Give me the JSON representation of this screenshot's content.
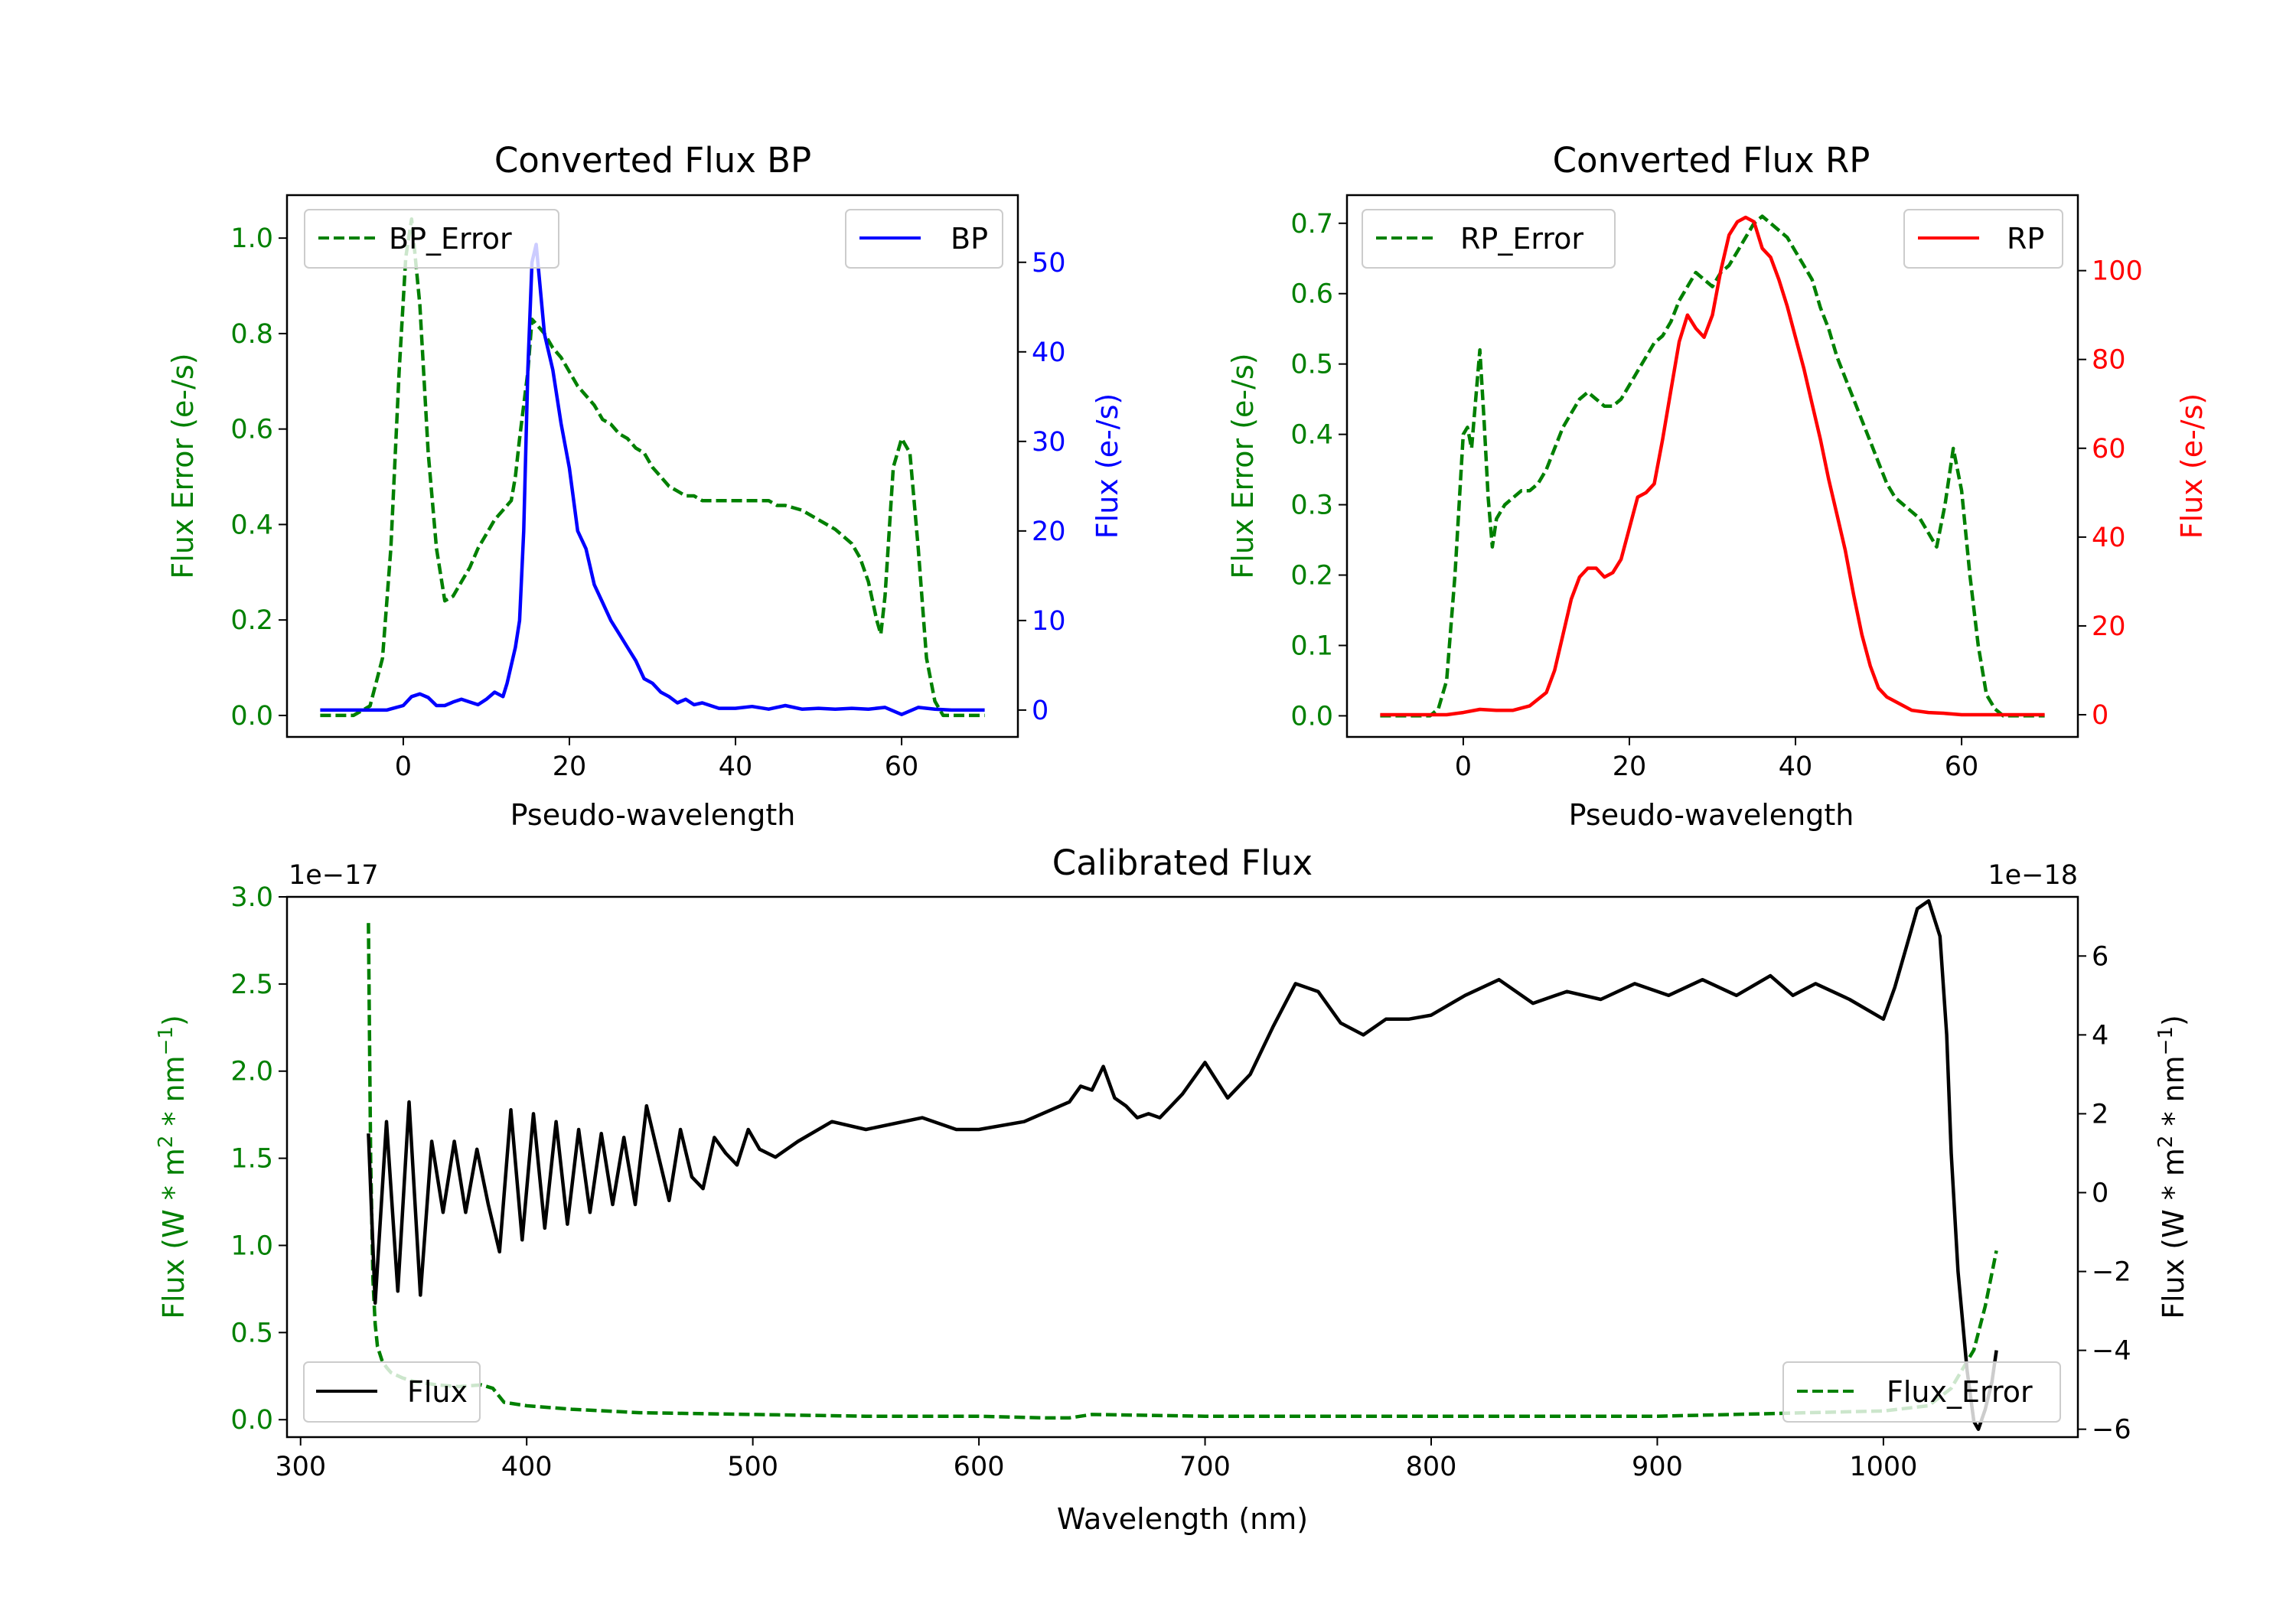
{
  "chart_data": [
    {
      "id": "bp",
      "type": "line",
      "title": "Converted Flux BP",
      "xlabel": "Pseudo-wavelength",
      "ylabel_left": "Flux Error (e-/s)",
      "ylabel_right": "Flux (e-/s)",
      "xlim": [
        -14,
        74
      ],
      "ylim_left": [
        -0.045,
        1.09
      ],
      "ylim_right": [
        -3.0,
        57.5
      ],
      "xticks": [
        0,
        20,
        40,
        60
      ],
      "yticks_left": [
        0.0,
        0.2,
        0.4,
        0.6,
        0.8,
        1.0
      ],
      "yticks_right": [
        0,
        10,
        20,
        30,
        40,
        50
      ],
      "colors": {
        "left": "#008000",
        "right": "#0000ff"
      },
      "series": [
        {
          "name": "BP_Error",
          "axis": "left",
          "style": "dashed",
          "color": "#008000",
          "x": [
            -10,
            -6,
            -4,
            -2.5,
            -1.5,
            -0.5,
            0.3,
            1,
            2,
            3,
            4,
            5,
            6,
            7,
            8,
            9,
            10,
            11,
            12,
            13,
            13.5,
            14,
            15,
            15.5,
            16,
            17,
            18,
            19,
            20,
            21,
            22,
            23,
            24,
            25,
            26,
            27,
            28,
            29,
            30,
            31,
            32,
            33,
            34,
            35,
            36,
            37,
            38,
            40,
            42,
            44,
            45,
            46,
            48,
            50,
            52,
            54,
            55,
            56,
            57,
            57.5,
            58,
            59,
            60,
            61,
            62,
            63,
            64,
            65,
            66,
            68,
            70
          ],
          "values": [
            0.0,
            0.0,
            0.02,
            0.12,
            0.35,
            0.72,
            0.96,
            1.04,
            0.86,
            0.55,
            0.35,
            0.24,
            0.25,
            0.28,
            0.31,
            0.35,
            0.38,
            0.41,
            0.43,
            0.45,
            0.5,
            0.58,
            0.72,
            0.83,
            0.82,
            0.8,
            0.77,
            0.75,
            0.72,
            0.69,
            0.67,
            0.65,
            0.62,
            0.61,
            0.59,
            0.58,
            0.56,
            0.55,
            0.52,
            0.5,
            0.48,
            0.47,
            0.46,
            0.46,
            0.45,
            0.45,
            0.45,
            0.45,
            0.45,
            0.45,
            0.44,
            0.44,
            0.43,
            0.41,
            0.39,
            0.36,
            0.33,
            0.28,
            0.2,
            0.17,
            0.25,
            0.52,
            0.58,
            0.55,
            0.35,
            0.12,
            0.03,
            0.0,
            0.0,
            0.0,
            0.0
          ]
        },
        {
          "name": "BP",
          "axis": "right",
          "style": "solid",
          "color": "#0000ff",
          "x": [
            -10,
            -4,
            -2,
            0,
            1,
            2,
            3,
            4,
            5,
            6,
            7,
            8,
            9,
            10,
            11,
            12,
            12.5,
            13,
            13.5,
            14,
            14.5,
            15,
            15.5,
            16,
            17,
            18,
            19,
            20,
            21,
            22,
            23,
            24,
            25,
            26,
            27,
            28,
            29,
            30,
            31,
            32,
            33,
            34,
            35,
            36,
            38,
            40,
            42,
            44,
            46,
            48,
            50,
            52,
            54,
            56,
            58,
            60,
            62,
            64,
            66,
            68,
            70
          ],
          "values": [
            0,
            0,
            0,
            0.5,
            1.5,
            1.8,
            1.4,
            0.5,
            0.5,
            0.9,
            1.2,
            0.9,
            0.6,
            1.2,
            2.0,
            1.5,
            3,
            5,
            7,
            10,
            20,
            38,
            50,
            52,
            42,
            38,
            32,
            27,
            20,
            18,
            14,
            12,
            10,
            8.5,
            7,
            5.5,
            3.5,
            3,
            2,
            1.5,
            0.8,
            1.2,
            0.6,
            0.8,
            0.2,
            0.2,
            0.4,
            0.1,
            0.5,
            0.1,
            0.2,
            0.1,
            0.2,
            0.1,
            0.3,
            -0.5,
            0.3,
            0.1,
            0,
            0,
            0
          ]
        }
      ],
      "legend": [
        {
          "label": "BP_Error",
          "position": "upper-left"
        },
        {
          "label": "BP",
          "position": "upper-right"
        }
      ]
    },
    {
      "id": "rp",
      "type": "line",
      "title": "Converted Flux RP",
      "xlabel": "Pseudo-wavelength",
      "ylabel_left": "Flux Error (e-/s)",
      "ylabel_right": "Flux (e-/s)",
      "xlim": [
        -14,
        74
      ],
      "ylim_left": [
        -0.03,
        0.74
      ],
      "ylim_right": [
        -5.0,
        117.0
      ],
      "xticks": [
        0,
        20,
        40,
        60
      ],
      "yticks_left": [
        0.0,
        0.1,
        0.2,
        0.3,
        0.4,
        0.5,
        0.6,
        0.7
      ],
      "yticks_right": [
        0,
        20,
        40,
        60,
        80,
        100
      ],
      "colors": {
        "left": "#008000",
        "right": "#ff0000"
      },
      "series": [
        {
          "name": "RP_Error",
          "axis": "left",
          "style": "dashed",
          "color": "#008000",
          "x": [
            -10,
            -4,
            -3,
            -2,
            -1,
            0,
            0.5,
            1,
            1.5,
            2,
            2.5,
            3,
            3.5,
            4,
            5,
            6,
            7,
            8,
            9,
            10,
            11,
            12,
            13,
            14,
            15,
            16,
            17,
            18,
            19,
            20,
            21,
            22,
            23,
            24,
            25,
            26,
            27,
            28,
            29,
            30,
            31,
            32,
            33,
            34,
            35,
            36,
            37,
            38,
            39,
            40,
            41,
            42,
            43,
            44,
            45,
            46,
            47,
            48,
            49,
            50,
            51,
            52,
            53,
            54,
            55,
            56,
            57,
            58,
            59,
            60,
            61,
            62,
            63,
            64,
            65,
            66,
            70
          ],
          "values": [
            0.0,
            0.0,
            0.01,
            0.05,
            0.2,
            0.4,
            0.41,
            0.38,
            0.45,
            0.52,
            0.42,
            0.31,
            0.24,
            0.28,
            0.3,
            0.31,
            0.32,
            0.32,
            0.33,
            0.35,
            0.38,
            0.41,
            0.43,
            0.45,
            0.46,
            0.45,
            0.44,
            0.44,
            0.45,
            0.47,
            0.49,
            0.51,
            0.53,
            0.54,
            0.56,
            0.59,
            0.61,
            0.63,
            0.62,
            0.61,
            0.63,
            0.64,
            0.66,
            0.68,
            0.7,
            0.71,
            0.7,
            0.69,
            0.68,
            0.66,
            0.64,
            0.62,
            0.58,
            0.55,
            0.51,
            0.48,
            0.45,
            0.42,
            0.39,
            0.36,
            0.33,
            0.31,
            0.3,
            0.29,
            0.28,
            0.26,
            0.24,
            0.3,
            0.38,
            0.32,
            0.2,
            0.1,
            0.03,
            0.01,
            0.0,
            0.0,
            0.0
          ]
        },
        {
          "name": "RP",
          "axis": "right",
          "style": "solid",
          "color": "#ff0000",
          "x": [
            -10,
            -2,
            0,
            2,
            4,
            6,
            8,
            10,
            11,
            12,
            13,
            14,
            15,
            16,
            17,
            18,
            19,
            20,
            21,
            22,
            23,
            24,
            25,
            26,
            27,
            28,
            29,
            30,
            31,
            32,
            33,
            34,
            35,
            36,
            37,
            38,
            39,
            40,
            41,
            42,
            43,
            44,
            45,
            46,
            47,
            48,
            49,
            50,
            51,
            52,
            53,
            54,
            56,
            58,
            60,
            62,
            64,
            66,
            70
          ],
          "values": [
            0,
            0,
            0.5,
            1.2,
            1.0,
            1.0,
            2.0,
            5,
            10,
            18,
            26,
            31,
            33,
            33,
            31,
            32,
            35,
            42,
            49,
            50,
            52,
            62,
            73,
            84,
            90,
            87,
            85,
            90,
            100,
            108,
            111,
            112,
            111,
            105,
            103,
            98,
            92,
            85,
            78,
            70,
            62,
            53,
            45,
            37,
            27,
            18,
            11,
            6,
            4,
            3,
            2,
            1,
            0.5,
            0.3,
            0,
            0,
            0,
            0,
            0
          ]
        }
      ],
      "legend": [
        {
          "label": "RP_Error",
          "position": "upper-left"
        },
        {
          "label": "RP",
          "position": "upper-right"
        }
      ]
    },
    {
      "id": "cal",
      "type": "line",
      "title": "Calibrated Flux",
      "xlabel": "Wavelength (nm)",
      "ylabel_left": "Flux (W * m^2 * nm^-1)",
      "ylabel_right": "Flux (W * m^2 * nm^-1)",
      "offset_left": "1e−17",
      "offset_right": "1e−18",
      "xlim": [
        294,
        1086
      ],
      "ylim_left": [
        -0.1,
        3.0
      ],
      "ylim_right": [
        -6.2,
        7.5
      ],
      "xticks": [
        300,
        400,
        500,
        600,
        700,
        800,
        900,
        1000
      ],
      "yticks_left": [
        0.0,
        0.5,
        1.0,
        1.5,
        2.0,
        2.5,
        3.0
      ],
      "yticks_right": [
        -6,
        -4,
        -2,
        0,
        2,
        4,
        6
      ],
      "colors": {
        "left": "#008000",
        "right": "#000000"
      },
      "series": [
        {
          "name": "Flux_Error",
          "axis": "left",
          "style": "dashed",
          "color": "#008000",
          "x": [
            330,
            331,
            332,
            333,
            334,
            336,
            338,
            340,
            345,
            350,
            360,
            370,
            380,
            385,
            390,
            400,
            420,
            450,
            500,
            550,
            600,
            630,
            640,
            650,
            700,
            800,
            900,
            1000,
            1020,
            1030,
            1040,
            1045,
            1050
          ],
          "values": [
            2.85,
            1.5,
            0.8,
            0.55,
            0.42,
            0.34,
            0.3,
            0.27,
            0.24,
            0.22,
            0.2,
            0.19,
            0.2,
            0.18,
            0.1,
            0.08,
            0.06,
            0.04,
            0.03,
            0.02,
            0.02,
            0.01,
            0.01,
            0.03,
            0.02,
            0.02,
            0.02,
            0.05,
            0.08,
            0.18,
            0.4,
            0.65,
            0.97
          ]
        },
        {
          "name": "Flux",
          "axis": "right",
          "style": "solid",
          "color": "#000000",
          "x": [
            330,
            333,
            338,
            343,
            348,
            353,
            358,
            363,
            368,
            373,
            378,
            383,
            388,
            393,
            398,
            403,
            408,
            413,
            418,
            423,
            428,
            433,
            438,
            443,
            448,
            453,
            458,
            463,
            468,
            473,
            478,
            483,
            488,
            493,
            498,
            503,
            510,
            520,
            535,
            550,
            575,
            590,
            600,
            620,
            640,
            645,
            650,
            655,
            660,
            665,
            670,
            675,
            680,
            690,
            700,
            710,
            720,
            730,
            740,
            750,
            760,
            770,
            780,
            790,
            800,
            815,
            830,
            845,
            860,
            875,
            890,
            905,
            920,
            935,
            950,
            960,
            970,
            985,
            1000,
            1005,
            1010,
            1015,
            1020,
            1025,
            1028,
            1030,
            1033,
            1037,
            1040,
            1042,
            1045,
            1048,
            1050
          ],
          "values": [
            1.5,
            -2.8,
            1.8,
            -2.5,
            2.3,
            -2.6,
            1.3,
            -0.5,
            1.3,
            -0.5,
            1.1,
            -0.3,
            -1.5,
            2.1,
            -1.2,
            2.0,
            -0.9,
            1.8,
            -0.8,
            1.6,
            -0.5,
            1.5,
            -0.3,
            1.4,
            -0.3,
            2.2,
            1.0,
            -0.2,
            1.6,
            0.4,
            0.1,
            1.4,
            1.0,
            0.7,
            1.6,
            1.1,
            0.9,
            1.3,
            1.8,
            1.6,
            1.9,
            1.6,
            1.6,
            1.8,
            2.3,
            2.7,
            2.6,
            3.2,
            2.4,
            2.2,
            1.9,
            2.0,
            1.9,
            2.5,
            3.3,
            2.4,
            3.0,
            4.2,
            5.3,
            5.1,
            4.3,
            4.0,
            4.4,
            4.4,
            4.5,
            5.0,
            5.4,
            4.8,
            5.1,
            4.9,
            5.3,
            5.0,
            5.4,
            5.0,
            5.5,
            5.0,
            5.3,
            4.9,
            4.4,
            5.2,
            6.2,
            7.2,
            7.4,
            6.5,
            4.0,
            1.0,
            -2.0,
            -4.5,
            -5.8,
            -6.0,
            -5.5,
            -4.8,
            -4.0
          ]
        }
      ],
      "legend": [
        {
          "label": "Flux",
          "position": "lower-left"
        },
        {
          "label": "Flux_Error",
          "position": "lower-right"
        }
      ]
    }
  ]
}
